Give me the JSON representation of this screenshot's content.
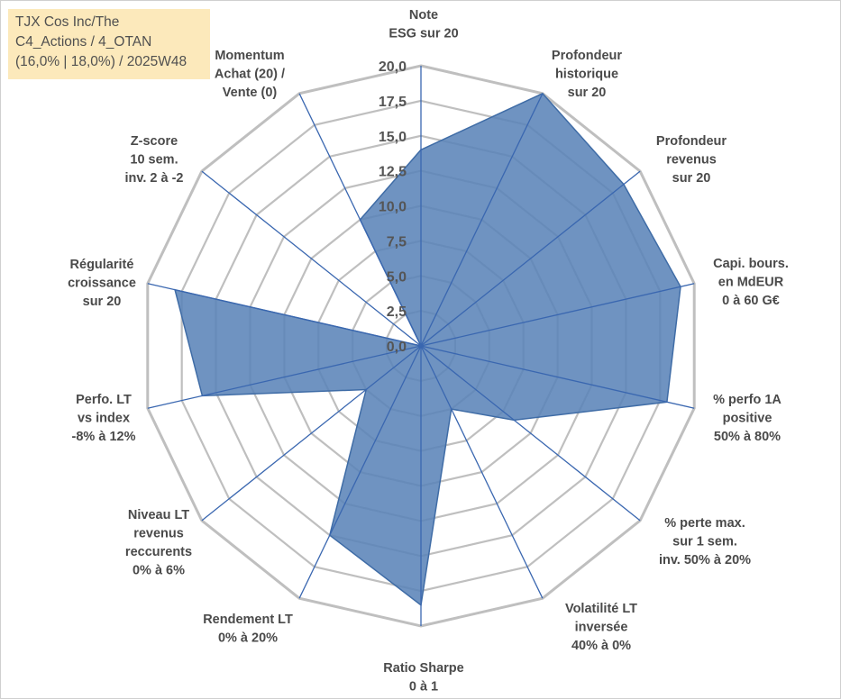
{
  "title": {
    "lines": [
      "TJX Cos Inc/The",
      "C4_Actions / 4_OTAN",
      "(16,0% | 18,0%) / 2025W48"
    ]
  },
  "colors": {
    "grid": "#bfbfbf",
    "spoke": "#3a67b0",
    "fill": "#5b84b8",
    "fill_edge": "#3f6ca6",
    "title_bg": "#fce9bb"
  },
  "chart_data": {
    "type": "radar",
    "title": "TJX Cos Inc/The",
    "rlim": [
      0,
      20
    ],
    "ticks": [
      "0,0",
      "2,5",
      "5,0",
      "7,5",
      "10,0",
      "12,5",
      "15,0",
      "17,5",
      "20,0"
    ],
    "axes": [
      {
        "label": [
          "Note",
          "ESG sur 20"
        ],
        "value": 14.0
      },
      {
        "label": [
          "Profondeur",
          "historique",
          "sur 20"
        ],
        "value": 20.0
      },
      {
        "label": [
          "Profondeur",
          "revenus",
          "sur 20"
        ],
        "value": 18.5
      },
      {
        "label": [
          "Capi. bours.",
          "en MdEUR",
          "0 à 60 G€"
        ],
        "value": 19.0
      },
      {
        "label": [
          "% perfo 1A",
          "positive",
          "50% à 80%"
        ],
        "value": 18.0
      },
      {
        "label": [
          "% perte max.",
          "sur 1 sem.",
          "inv. 50% à 20%"
        ],
        "value": 8.5
      },
      {
        "label": [
          "Volatilité LT",
          "inversée",
          "40% à 0%"
        ],
        "value": 5.0
      },
      {
        "label": [
          "Ratio Sharpe",
          "0 à 1"
        ],
        "value": 18.5
      },
      {
        "label": [
          "Rendement LT",
          "0% à 20%"
        ],
        "value": 15.0
      },
      {
        "label": [
          "Niveau LT",
          "revenus",
          "reccurents",
          "0% à 6%"
        ],
        "value": 5.0
      },
      {
        "label": [
          "Perfo. LT",
          "vs index",
          "-8% à 12%"
        ],
        "value": 16.0
      },
      {
        "label": [
          "Régularité",
          "croissance",
          "sur 20"
        ],
        "value": 18.0
      },
      {
        "label": [
          "Z-score",
          "10 sem.",
          "inv. 2 à -2"
        ],
        "value": 0.0
      },
      {
        "label": [
          "Momentum",
          "Achat (20) /",
          "Vente (0)"
        ],
        "value": 10.0
      }
    ]
  }
}
